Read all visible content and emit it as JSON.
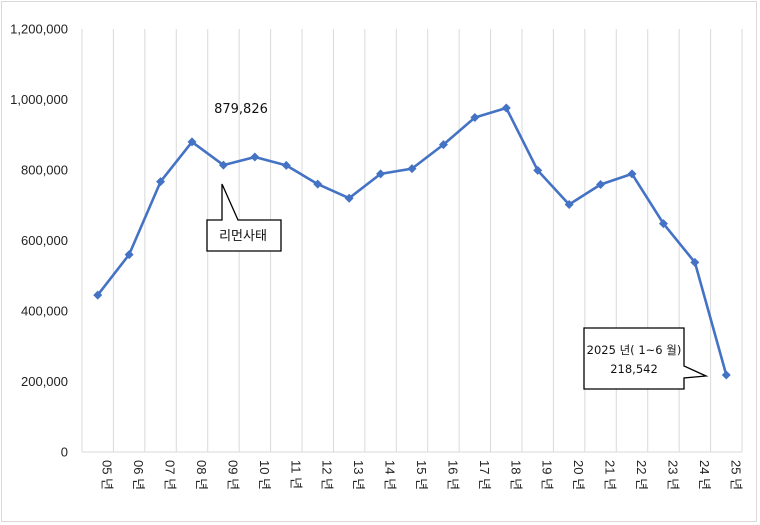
{
  "chart_data": {
    "type": "line",
    "title": "",
    "xlabel": "",
    "ylabel": "",
    "categories": [
      "05 년",
      "06 년",
      "07 년",
      "08 년",
      "09 년",
      "10 년",
      "11 년",
      "12 년",
      "13 년",
      "14 년",
      "15 년",
      "16 년",
      "17 년",
      "18 년",
      "19 년",
      "20 년",
      "21 년",
      "22 년",
      "23 년",
      "24 년",
      "25 년"
    ],
    "series": [
      {
        "values": [
          445000,
          560000,
          767000,
          879826,
          814000,
          837000,
          813000,
          760000,
          720000,
          789000,
          804000,
          872000,
          949000,
          976000,
          799000,
          702000,
          759000,
          789000,
          648000,
          538000,
          218542
        ]
      }
    ],
    "ylim": [
      0,
      1200000
    ],
    "yticks": [
      0,
      200000,
      400000,
      600000,
      800000,
      1000000,
      1200000
    ],
    "ytick_labels": [
      "0",
      "200,000",
      "400,000",
      "600,000",
      "800,000",
      "1,000,000",
      "1,200,000"
    ],
    "grid": "vertical",
    "line_color": "#4472c4",
    "annotations": [
      {
        "text": "879,826",
        "point_index": 3
      },
      {
        "text": "리먼사태",
        "point_index": 4
      },
      {
        "text": "2025 년( 1~6 월)",
        "point_index": 20
      },
      {
        "text": "218,542",
        "point_index": 20
      }
    ]
  }
}
